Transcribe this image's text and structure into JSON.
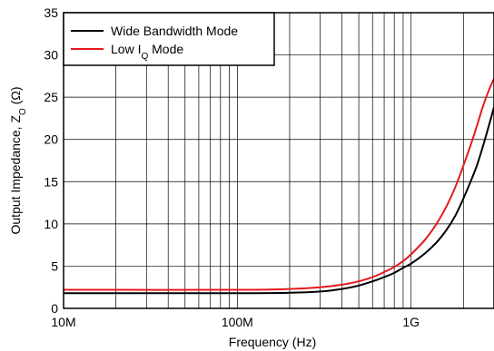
{
  "chart_data": {
    "type": "line",
    "xlabel": "Frequency (Hz)",
    "ylabel": {
      "pre": "Output Impedance, Z",
      "sub": "O",
      "post": " (Ω)"
    },
    "x_scale": "log",
    "xlim": [
      10000000,
      3000000000
    ],
    "ylim": [
      0,
      35
    ],
    "grid": true,
    "legend_position": "top-left",
    "x_ticks": [
      {
        "value": 10000000,
        "label": "10M"
      },
      {
        "value": 100000000,
        "label": "100M"
      },
      {
        "value": 1000000000,
        "label": "1G"
      }
    ],
    "y_ticks": [
      {
        "value": 0,
        "label": "0"
      },
      {
        "value": 5,
        "label": "5"
      },
      {
        "value": 10,
        "label": "10"
      },
      {
        "value": 15,
        "label": "15"
      },
      {
        "value": 20,
        "label": "20"
      },
      {
        "value": 25,
        "label": "25"
      },
      {
        "value": 30,
        "label": "30"
      },
      {
        "value": 35,
        "label": "35"
      }
    ],
    "series": [
      {
        "name": "Wide Bandwidth Mode",
        "legend": {
          "pre": "Wide Bandwidth Mode",
          "sub": "",
          "post": ""
        },
        "color": "#000000",
        "x": [
          10000000,
          100000000,
          200000000,
          300000000,
          400000000,
          500000000,
          600000000,
          700000000,
          800000000,
          900000000,
          1000000000,
          1200000000,
          1400000000,
          1600000000,
          1800000000,
          2000000000,
          2200000000,
          2400000000,
          2600000000,
          2800000000,
          3000000000
        ],
        "y": [
          1.8,
          1.8,
          1.85,
          2.0,
          2.3,
          2.7,
          3.2,
          3.7,
          4.2,
          4.8,
          5.3,
          6.5,
          7.8,
          9.3,
          11.0,
          13.0,
          15.0,
          17.0,
          19.3,
          21.6,
          23.8
        ]
      },
      {
        "name": "Low IQ Mode",
        "legend": {
          "pre": "Low I",
          "sub": "Q",
          "post": " Mode"
        },
        "color": "#e41a1c",
        "x": [
          10000000,
          100000000,
          200000000,
          300000000,
          400000000,
          500000000,
          600000000,
          700000000,
          800000000,
          900000000,
          1000000000,
          1200000000,
          1400000000,
          1600000000,
          1800000000,
          2000000000,
          2200000000,
          2400000000,
          2600000000,
          2800000000,
          3000000000
        ],
        "y": [
          2.2,
          2.2,
          2.3,
          2.5,
          2.8,
          3.2,
          3.7,
          4.3,
          4.9,
          5.6,
          6.4,
          8.1,
          10.0,
          12.1,
          14.4,
          16.9,
          19.3,
          21.7,
          24.0,
          25.8,
          27.2
        ]
      }
    ]
  }
}
